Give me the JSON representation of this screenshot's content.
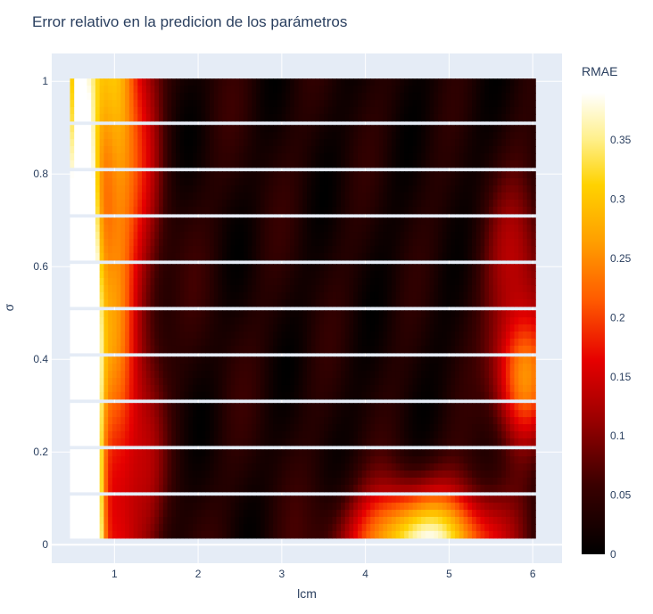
{
  "chart_data": {
    "type": "heatmap",
    "title": "Error relativo en la predicion de los parámetros",
    "xlabel": "lcm",
    "ylabel": "σ",
    "xlim": [
      0.25,
      6.35
    ],
    "ylim": [
      -0.04,
      1.06
    ],
    "grid": true,
    "colorscale": "hot",
    "x_ticks": [
      1,
      2,
      3,
      4,
      5,
      6
    ],
    "x_tick_labels": [
      "1",
      "2",
      "3",
      "4",
      "5",
      "6"
    ],
    "y_ticks": [
      0,
      0.2,
      0.4,
      0.6,
      0.8,
      1
    ],
    "y_tick_labels": [
      "0",
      "0.2",
      "0.4",
      "0.6",
      "0.8",
      "1"
    ],
    "x_range": [
      0.5,
      6
    ],
    "sigma_bands": [
      {
        "y_min": 0.02,
        "y_max": 0.1
      },
      {
        "y_min": 0.12,
        "y_max": 0.2
      },
      {
        "y_min": 0.22,
        "y_max": 0.3
      },
      {
        "y_min": 0.32,
        "y_max": 0.4
      },
      {
        "y_min": 0.42,
        "y_max": 0.5
      },
      {
        "y_min": 0.52,
        "y_max": 0.6
      },
      {
        "y_min": 0.62,
        "y_max": 0.7
      },
      {
        "y_min": 0.72,
        "y_max": 0.8
      },
      {
        "y_min": 0.82,
        "y_max": 0.9
      },
      {
        "y_min": 0.92,
        "y_max": 1.0
      }
    ],
    "colorbar": {
      "title": "RMAE",
      "min": 0,
      "max": 0.39,
      "ticks": [
        0,
        0.05,
        0.1,
        0.15,
        0.2,
        0.25,
        0.3,
        0.35
      ],
      "tick_labels": [
        "0",
        "0.05",
        "0.1",
        "0.15",
        "0.2",
        "0.25",
        "0.3",
        "0.35"
      ]
    }
  }
}
